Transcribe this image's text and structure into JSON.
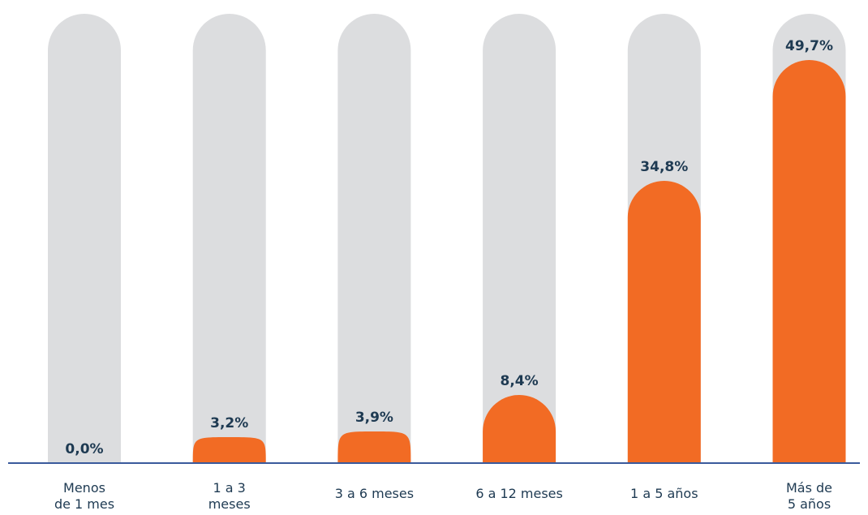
{
  "chart_data": {
    "type": "bar",
    "categories": [
      [
        "Menos",
        "de 1 mes"
      ],
      [
        "1 a 3",
        "meses"
      ],
      [
        "3 a 6 meses"
      ],
      [
        "6 a 12 meses"
      ],
      [
        "1 a 5 años"
      ],
      [
        "Más de",
        "5 años"
      ]
    ],
    "values": [
      0.0,
      3.2,
      3.9,
      8.4,
      34.8,
      49.7
    ],
    "value_labels": [
      "0,0%",
      "3,2%",
      "3,9%",
      "8,4%",
      "34,8%",
      "49,7%"
    ],
    "ylim": [
      0,
      52
    ],
    "title": "",
    "xlabel": "",
    "ylabel": "",
    "grid": false,
    "legend": "none"
  },
  "colors": {
    "bar": "#f26b24",
    "track": "#dcdddf",
    "axis": "#3a5a9c",
    "value_text": "#1e3a52",
    "category_text": "#1e3a52"
  }
}
